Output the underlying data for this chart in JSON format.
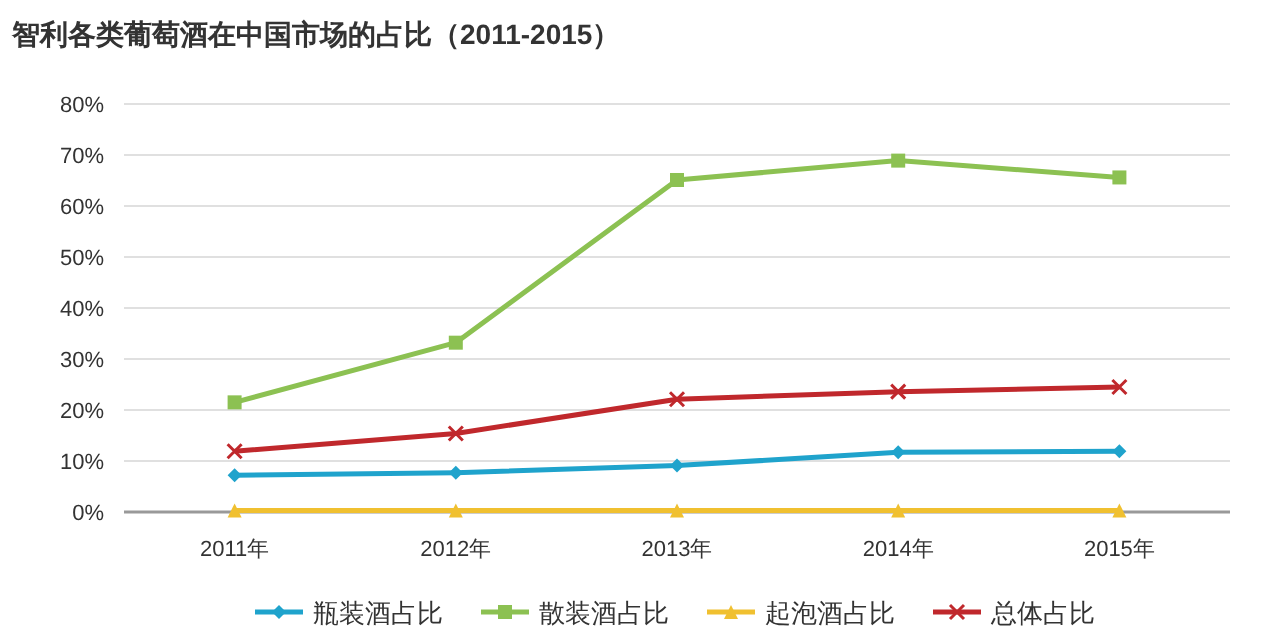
{
  "chart_data": {
    "type": "line",
    "title": "智利各类葡萄酒在中国市场的占比（2011-2015）",
    "categories": [
      "2011年",
      "2012年",
      "2013年",
      "2014年",
      "2015年"
    ],
    "series": [
      {
        "name": "瓶装酒占比",
        "color": "#1fa3cc",
        "marker": "diamond",
        "values": [
          7.2,
          7.7,
          9.1,
          11.7,
          11.9
        ]
      },
      {
        "name": "散装酒占比",
        "color": "#8cc152",
        "marker": "square",
        "values": [
          21.5,
          33.2,
          65.1,
          68.9,
          65.6
        ]
      },
      {
        "name": "起泡酒占比",
        "color": "#f0c030",
        "marker": "triangle",
        "values": [
          0.3,
          0.3,
          0.3,
          0.3,
          0.3
        ]
      },
      {
        "name": "总体占比",
        "color": "#c0282c",
        "marker": "cross",
        "values": [
          11.9,
          15.4,
          22.1,
          23.6,
          24.5
        ]
      }
    ],
    "ylim": [
      0,
      80
    ],
    "yticks": [
      {
        "value": 0,
        "label": "0%"
      },
      {
        "value": 10,
        "label": "10%"
      },
      {
        "value": 20,
        "label": "20%"
      },
      {
        "value": 30,
        "label": "30%"
      },
      {
        "value": 40,
        "label": "40%"
      },
      {
        "value": 50,
        "label": "50%"
      },
      {
        "value": 60,
        "label": "60%"
      },
      {
        "value": 70,
        "label": "70%"
      },
      {
        "value": 80,
        "label": "80%"
      }
    ],
    "grid": "y",
    "legend": "bottom"
  }
}
